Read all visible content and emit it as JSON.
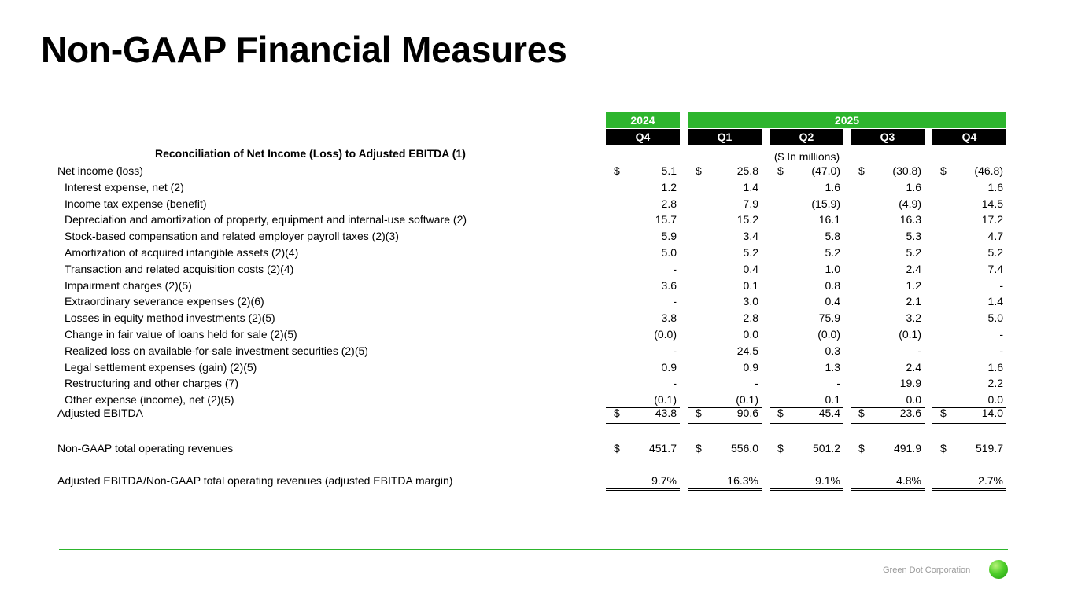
{
  "title": "Non-GAAP Financial Measures",
  "colors": {
    "accent_green": "#2db52d",
    "header_black": "#000000"
  },
  "header": {
    "year_2024": "2024",
    "year_2025": "2025",
    "quarters": [
      "Q4",
      "Q1",
      "Q2",
      "Q3",
      "Q4"
    ]
  },
  "section_heading": "Reconciliation of Net Income (Loss) to Adjusted EBITDA (1)",
  "units_note": "($ In millions)",
  "currency_symbol": "$",
  "rows": [
    {
      "label": "Net income (loss)",
      "values": [
        "5.1",
        "25.8",
        "(47.0)",
        "(30.8)",
        "(46.8)"
      ]
    },
    {
      "label": "Interest expense, net (2)",
      "values": [
        "1.2",
        "1.4",
        "1.6",
        "1.6",
        "1.6"
      ]
    },
    {
      "label": "Income tax expense (benefit)",
      "values": [
        "2.8",
        "7.9",
        "(15.9)",
        "(4.9)",
        "14.5"
      ]
    },
    {
      "label": "Depreciation and amortization of property, equipment and internal-use software (2)",
      "values": [
        "15.7",
        "15.2",
        "16.1",
        "16.3",
        "17.2"
      ]
    },
    {
      "label": "Stock-based compensation and related employer payroll taxes (2)(3)",
      "values": [
        "5.9",
        "3.4",
        "5.8",
        "5.3",
        "4.7"
      ]
    },
    {
      "label": "Amortization of acquired intangible assets (2)(4)",
      "values": [
        "5.0",
        "5.2",
        "5.2",
        "5.2",
        "5.2"
      ]
    },
    {
      "label": "Transaction and related acquisition costs (2)(4)",
      "values": [
        "-",
        "0.4",
        "1.0",
        "2.4",
        "7.4"
      ]
    },
    {
      "label": "Impairment charges (2)(5)",
      "values": [
        "3.6",
        "0.1",
        "0.8",
        "1.2",
        "-"
      ]
    },
    {
      "label": "Extraordinary severance expenses  (2)(6)",
      "values": [
        "-",
        "3.0",
        "0.4",
        "2.1",
        "1.4"
      ]
    },
    {
      "label": "Losses in equity method investments (2)(5)",
      "values": [
        "3.8",
        "2.8",
        "75.9",
        "3.2",
        "5.0"
      ]
    },
    {
      "label": "Change in fair value of loans held for sale (2)(5)",
      "values": [
        "(0.0)",
        "0.0",
        "(0.0)",
        "(0.1)",
        "-"
      ]
    },
    {
      "label": "Realized loss on available-for-sale investment securities (2)(5)",
      "values": [
        "-",
        "24.5",
        "0.3",
        "-",
        "-"
      ]
    },
    {
      "label": "Legal settlement expenses (gain) (2)(5)",
      "values": [
        "0.9",
        "0.9",
        "1.3",
        "2.4",
        "1.6"
      ]
    },
    {
      "label": "Restructuring and other charges (7)",
      "values": [
        "-",
        "-",
        "-",
        "19.9",
        "2.2"
      ]
    },
    {
      "label": "Other expense (income), net (2)(5)",
      "values": [
        "(0.1)",
        "(0.1)",
        "0.1",
        "0.0",
        "0.0"
      ]
    }
  ],
  "adjusted_ebitda": {
    "label": "Adjusted EBITDA",
    "values": [
      "43.8",
      "90.6",
      "45.4",
      "23.6",
      "14.0"
    ]
  },
  "operating_revenues": {
    "label": "Non-GAAP total operating revenues",
    "values": [
      "451.7",
      "556.0",
      "501.2",
      "491.9",
      "519.7"
    ]
  },
  "ebitda_margin": {
    "label": "Adjusted EBITDA/Non-GAAP total operating revenues (adjusted EBITDA margin)",
    "values": [
      "9.7%",
      "16.3%",
      "9.1%",
      "4.8%",
      "2.7%"
    ]
  },
  "footer": {
    "company": "Green Dot Corporation",
    "logo_icon": "green-dot-logo-icon"
  }
}
